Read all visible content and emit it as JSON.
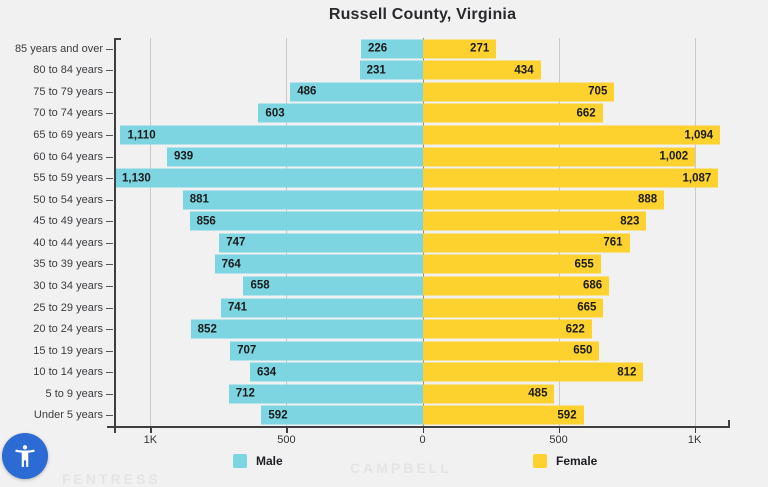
{
  "header": {
    "title": "Russell County, Virginia"
  },
  "chart_data": {
    "type": "bar",
    "subtype": "population-pyramid",
    "title": "Russell County, Virginia",
    "orientation": "horizontal",
    "categories": [
      "85 years and over",
      "80 to 84 years",
      "75 to 79 years",
      "70 to 74 years",
      "65 to 69 years",
      "60 to 64 years",
      "55 to 59 years",
      "50 to 54 years",
      "45 to 49 years",
      "40 to 44 years",
      "35 to 39 years",
      "30 to 34 years",
      "25 to 29 years",
      "20 to 24 years",
      "15 to 19 years",
      "10 to 14 years",
      "5 to 9 years",
      "Under 5 years"
    ],
    "series": [
      {
        "name": "Male",
        "color": "#7dd5e2",
        "values": [
          226,
          231,
          486,
          603,
          1110,
          939,
          1130,
          881,
          856,
          747,
          764,
          658,
          741,
          852,
          707,
          634,
          712,
          592
        ]
      },
      {
        "name": "Female",
        "color": "#fdd12e",
        "values": [
          271,
          434,
          705,
          662,
          1094,
          1002,
          1087,
          888,
          823,
          761,
          655,
          686,
          665,
          622,
          650,
          812,
          485,
          592
        ]
      }
    ],
    "x_axis": {
      "tick_labels": [
        "1K",
        "500",
        "0",
        "500",
        "1K"
      ],
      "tick_values": [
        -1000,
        -500,
        0,
        500,
        1000
      ],
      "max_abs": 1130
    },
    "grid": true,
    "legend_position": "bottom",
    "value_labels": "inside-outer-end"
  },
  "legend": {
    "items": [
      {
        "label": "Male",
        "color": "#7dd5e2"
      },
      {
        "label": "Female",
        "color": "#fdd12e"
      }
    ]
  },
  "watermarks": {
    "left": "FENTRESS",
    "center": "CAMPBELL"
  },
  "accessibility_button": {
    "icon": "accessibility-person-icon",
    "color": "#2b6bd3"
  },
  "colors": {
    "background": "#f1f1f2",
    "male": "#7dd5e2",
    "female": "#fdd12e",
    "axis": "#3f3f42",
    "grid": "#c9c9c9",
    "grid_zero": "#8e8e8e",
    "bar_label_text": "#1b1b1b"
  }
}
